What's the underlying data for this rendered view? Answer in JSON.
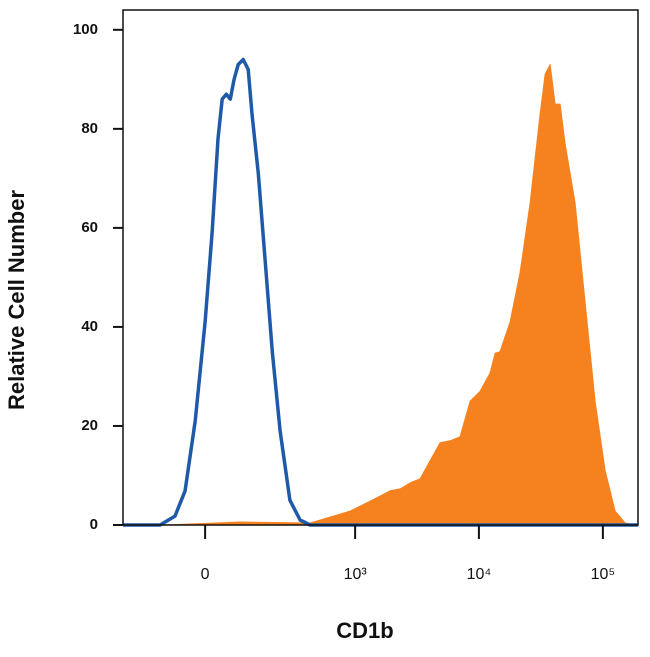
{
  "chart_data": {
    "type": "histogram-overlay",
    "x_label": "CD1b",
    "y_label": "Relative Cell Number",
    "xscale": "biexponential",
    "xlim": [
      -271,
      192000
    ],
    "ylim": [
      0,
      104
    ],
    "xticks": [
      0,
      {
        "value": 1000,
        "label": "10³"
      },
      {
        "value": 10000,
        "label": "10⁴"
      },
      {
        "value": 100000,
        "label": "10⁵"
      }
    ],
    "yticks": [
      0,
      20,
      40,
      60,
      80,
      100
    ],
    "series": [
      {
        "color": "#f5821f",
        "fill": true,
        "x": [
          -101,
          86,
          426,
          625,
          911,
          1322,
          1919,
          2312,
          2784,
          3355,
          4036,
          4865,
          5856,
          7044,
          8493,
          10226,
          12306,
          13507,
          14806,
          17840,
          21479,
          25862,
          31148,
          34181,
          37511,
          41164,
          45175,
          49582,
          59696,
          71878,
          86549,
          104202,
          125409,
          151036,
          181862
        ],
        "values": [
          0,
          0.6,
          0.4,
          1.6,
          2.8,
          4.8,
          6.9,
          7.3,
          8.5,
          9.3,
          13,
          16.6,
          17,
          17.8,
          25,
          27,
          30.7,
          34.7,
          35,
          41,
          51,
          65,
          83,
          91,
          93,
          85,
          85,
          77,
          65,
          45,
          25,
          11,
          2.8,
          0.4,
          0
        ]
      },
      {
        "color": "#1f5aa8",
        "fill": false,
        "x": [
          -271,
          -116,
          -73,
          -47,
          -23,
          0,
          16,
          30,
          40,
          50,
          60,
          70,
          81,
          95,
          110,
          122,
          143,
          169,
          198,
          234,
          286,
          351,
          426,
          192000
        ],
        "values": [
          0,
          0,
          1.8,
          6.9,
          21,
          41,
          59,
          78,
          86,
          87,
          86,
          90,
          93,
          94,
          92,
          83,
          71,
          53,
          35,
          19,
          5,
          1,
          0,
          0
        ]
      }
    ]
  }
}
